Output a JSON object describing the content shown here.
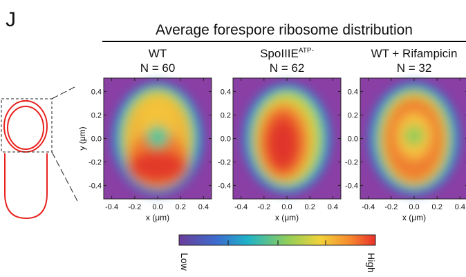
{
  "panel_label": "J",
  "title": "Average forespore ribosome distribution",
  "x_label": "x (μm)",
  "y_label": "y (μm)",
  "xticks": [
    {
      "value": -0.4,
      "label": "-0.4"
    },
    {
      "value": -0.2,
      "label": "-0.2"
    },
    {
      "value": 0,
      "label": "0.0"
    },
    {
      "value": 0.2,
      "label": "0.2"
    },
    {
      "value": 0.4,
      "label": "0.4"
    }
  ],
  "yticks": [
    {
      "value": 0.4,
      "label": "0.4"
    },
    {
      "value": 0.2,
      "label": "0.2"
    },
    {
      "value": 0,
      "label": "0.0"
    },
    {
      "value": -0.2,
      "label": "-0.2"
    },
    {
      "value": -0.4,
      "label": "-0.4"
    }
  ],
  "panels": [
    {
      "name": "WT",
      "superscript": null,
      "n_text": "N = 60"
    },
    {
      "name": "SpoIIIE",
      "superscript": "ATP-",
      "n_text": "N = 62"
    },
    {
      "name": "WT + Rifampicin",
      "superscript": null,
      "n_text": "N = 32"
    }
  ],
  "colorbar": {
    "low": "Low",
    "high": "High"
  }
}
